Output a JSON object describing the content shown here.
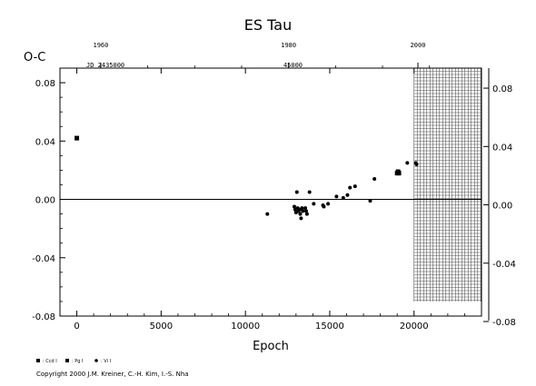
{
  "chart_data": {
    "type": "scatter",
    "title": "ES Tau",
    "ylabel": "O-C",
    "xlabel": "Epoch",
    "xlim": [
      -1000,
      24000
    ],
    "ylim": [
      -0.08,
      0.09
    ],
    "x_ticks": [
      {
        "v": 0,
        "label": "0"
      },
      {
        "v": 5000,
        "label": "5000"
      },
      {
        "v": 10000,
        "label": "10000"
      },
      {
        "v": 15000,
        "label": "15000"
      },
      {
        "v": 20000,
        "label": "20000"
      }
    ],
    "y_ticks_left": [
      {
        "v": 0.08,
        "label": "0.08"
      },
      {
        "v": 0.04,
        "label": "0.04"
      },
      {
        "v": 0.0,
        "label": "0.00"
      },
      {
        "v": -0.04,
        "label": "-0.04"
      },
      {
        "v": -0.08,
        "label": "-0.08"
      }
    ],
    "y_ticks_right": [
      {
        "v": 0.08,
        "label": "0.08"
      },
      {
        "v": 0.04,
        "label": "0.04"
      },
      {
        "v": 0.0,
        "label": "0.00"
      },
      {
        "v": -0.04,
        "label": "-0.04"
      },
      {
        "v": -0.08,
        "label": "-0.08"
      }
    ],
    "top_year_ticks": [
      {
        "v": 1420,
        "label": "1960"
      },
      {
        "v": 12560,
        "label": "1980"
      },
      {
        "v": 20230,
        "label": "2000"
      }
    ],
    "jd_label_text": "JD 2435000",
    "jd_tick": {
      "v": 12820,
      "label": "45000"
    },
    "hatched_region_start": 20000,
    "series": [
      {
        "name": ": Ccd I",
        "marker": "square",
        "points": [
          [
            19000,
            0.018
          ],
          [
            19050,
            0.019
          ],
          [
            19100,
            0.018
          ]
        ]
      },
      {
        "name": ": Pg I",
        "marker": "square",
        "points": [
          [
            0,
            0.042
          ]
        ]
      },
      {
        "name": ": Vi I",
        "marker": "circle",
        "points": [
          [
            11300,
            -0.01
          ],
          [
            12900,
            -0.005
          ],
          [
            12950,
            -0.007
          ],
          [
            13000,
            -0.009
          ],
          [
            13050,
            0.005
          ],
          [
            13100,
            -0.006
          ],
          [
            13150,
            -0.008
          ],
          [
            13200,
            -0.007
          ],
          [
            13250,
            -0.01
          ],
          [
            13300,
            -0.013
          ],
          [
            13350,
            -0.006
          ],
          [
            13400,
            -0.008
          ],
          [
            13550,
            -0.006
          ],
          [
            13600,
            -0.008
          ],
          [
            13650,
            -0.01
          ],
          [
            13800,
            0.005
          ],
          [
            14050,
            -0.003
          ],
          [
            14600,
            -0.004
          ],
          [
            14650,
            -0.005
          ],
          [
            14900,
            -0.003
          ],
          [
            15400,
            0.002
          ],
          [
            15800,
            0.001
          ],
          [
            16050,
            0.003
          ],
          [
            16200,
            0.008
          ],
          [
            16500,
            0.009
          ],
          [
            17400,
            -0.001
          ],
          [
            17650,
            0.014
          ],
          [
            19600,
            0.025
          ],
          [
            20100,
            0.025
          ],
          [
            20150,
            0.024
          ]
        ]
      }
    ]
  },
  "copyright": "Copyright 2000 J.M. Kreiner, C.-H. Kim, I.-S. Nha"
}
